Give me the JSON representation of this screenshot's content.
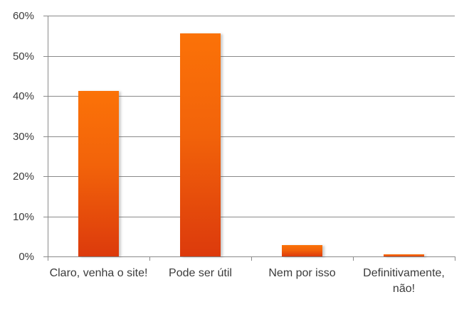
{
  "chart_data": {
    "type": "bar",
    "categories": [
      "Claro, venha o site!",
      "Pode ser útil",
      "Nem por isso",
      "Definitivamente, não!"
    ],
    "values": [
      41.3,
      55.5,
      2.8,
      0.5
    ],
    "value_unit": "%",
    "title": "",
    "xlabel": "",
    "ylabel": "",
    "ylim": [
      0,
      60
    ],
    "ytick_step": 10,
    "ytick_labels": [
      "0%",
      "10%",
      "20%",
      "30%",
      "40%",
      "50%",
      "60%"
    ],
    "grid": true,
    "legend": false,
    "colors": {
      "bar_top": "#FB7208",
      "bar_mid": "#F2630A",
      "bar_bottom": "#DC3A0C",
      "gridline": "#8A8A8A",
      "axis": "#8A8A8A",
      "tick_text": "#3B3B3B",
      "background": "#FFFFFF"
    }
  }
}
